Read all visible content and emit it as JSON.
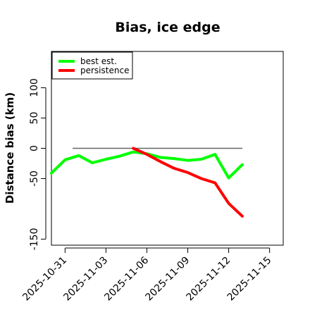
{
  "chart_data": {
    "type": "line",
    "title": "Bias, ice edge",
    "xlabel": "",
    "ylabel": "Distance bias (km)",
    "x_ticks": [
      "2025-10-31",
      "2025-11-03",
      "2025-11-06",
      "2025-11-09",
      "2025-11-12",
      "2025-11-15"
    ],
    "x_range": [
      "2025-10-30",
      "2025-11-16"
    ],
    "y_ticks": [
      -150,
      -50,
      0,
      50,
      100
    ],
    "ylim": [
      -160,
      160
    ],
    "legend_position": "top-left",
    "grid": false,
    "reference_line": {
      "y": 0,
      "x_from": "2025-10-30",
      "x_to": "2025-11-13",
      "color": "#666666"
    },
    "series": [
      {
        "name": "best est.",
        "color": "#00ff00",
        "x": [
          "2025-10-30",
          "2025-10-31",
          "2025-11-01",
          "2025-11-02",
          "2025-11-03",
          "2025-11-04",
          "2025-11-05",
          "2025-11-06",
          "2025-11-07",
          "2025-11-08",
          "2025-11-09",
          "2025-11-10",
          "2025-11-11",
          "2025-11-12",
          "2025-11-13"
        ],
        "values": [
          -41,
          -19,
          -12,
          -24,
          -18,
          -13,
          -6,
          -9,
          -15,
          -17,
          -20,
          -18,
          -10,
          -49,
          -27
        ]
      },
      {
        "name": "persistence",
        "color": "#ff0000",
        "x": [
          "2025-11-05",
          "2025-11-06",
          "2025-11-07",
          "2025-11-08",
          "2025-11-09",
          "2025-11-10",
          "2025-11-11",
          "2025-11-12",
          "2025-11-13"
        ],
        "values": [
          0,
          -10,
          -22,
          -33,
          -40,
          -50,
          -57,
          -91,
          -112
        ]
      }
    ]
  }
}
